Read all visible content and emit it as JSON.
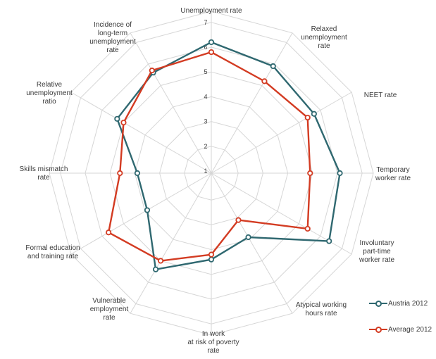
{
  "chart_data": {
    "type": "radar",
    "title": "",
    "categories": [
      [
        "Unemployment rate"
      ],
      [
        "Relaxed",
        "unemployment",
        "rate"
      ],
      [
        "NEET rate"
      ],
      [
        "Temporary",
        "worker rate"
      ],
      [
        "Involuntary",
        "part-time",
        "worker rate"
      ],
      [
        "Atypical working",
        "hours rate"
      ],
      [
        "In work",
        "at risk of poverty",
        "rate"
      ],
      [
        "Vulnerable",
        "employment",
        "rate"
      ],
      [
        "Formal education",
        "and training rate"
      ],
      [
        "Skills mismatch",
        "rate"
      ],
      [
        "Relative",
        "unemployment",
        "ratio"
      ],
      [
        "Incidence of",
        "long-term",
        "unemployment",
        "rate"
      ]
    ],
    "radial_ticks": [
      "1",
      "2",
      "3",
      "4",
      "5",
      "6",
      "7"
    ],
    "rlim": [
      1,
      7
    ],
    "grid": true,
    "legend_position": "bottom-right",
    "series": [
      {
        "name": "Austria 2012",
        "color": "#2f6870",
        "values": [
          6.2,
          5.9,
          5.7,
          6.1,
          6.4,
          3.9,
          4.4,
          5.4,
          3.9,
          3.9,
          5.3,
          5.6
        ]
      },
      {
        "name": "Average 2012",
        "color": "#d33b22",
        "values": [
          5.8,
          5.2,
          5.4,
          4.9,
          5.4,
          3.1,
          4.2,
          5.0,
          5.7,
          4.6,
          5.0,
          5.7
        ]
      }
    ]
  }
}
